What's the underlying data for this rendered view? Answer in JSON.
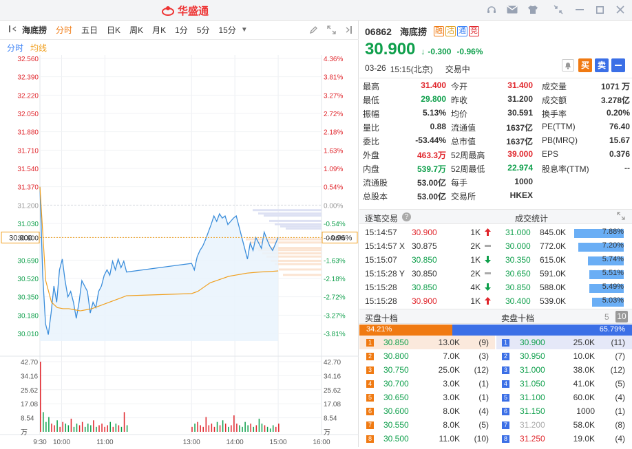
{
  "app": {
    "name": "华盛通",
    "colors": {
      "up": "#e0252b",
      "down": "#0e9f4b",
      "accent": "#f07a12",
      "blue": "#3b82f6"
    }
  },
  "window": {
    "icons": [
      "headset-icon",
      "mail-icon",
      "shirt-icon",
      "shrink-icon",
      "minimize-icon",
      "close-icon"
    ]
  },
  "toolbar": {
    "stock_name": "海底捞",
    "periods": [
      "分时",
      "五日",
      "日K",
      "周K",
      "月K",
      "1分",
      "5分",
      "15分"
    ],
    "active": "分时"
  },
  "subtabs": [
    "分时",
    "均线"
  ],
  "chart_data": {
    "type": "line",
    "price_axis": [
      "32.560",
      "32.390",
      "32.220",
      "32.050",
      "31.880",
      "31.710",
      "31.540",
      "31.370",
      "31.200",
      "31.030",
      "30.900",
      "30.690",
      "30.520",
      "30.350",
      "30.180",
      "30.010"
    ],
    "pct_axis": [
      "4.36%",
      "3.81%",
      "3.27%",
      "2.72%",
      "2.18%",
      "1.63%",
      "1.09%",
      "0.54%",
      "0.00%",
      "-0.54%",
      "-0.96%",
      "-1.63%",
      "-2.18%",
      "-2.72%",
      "-3.27%",
      "-3.81%"
    ],
    "prev_close": 31.2,
    "current": 30.9,
    "current_label": "30.900",
    "current_pct": "-0.96%",
    "ylim": [
      29.94,
      32.56
    ],
    "vol_axis": [
      "42.70",
      "34.16",
      "25.62",
      "17.08",
      "8.54",
      "万"
    ],
    "time_axis": [
      "9:30",
      "10:00",
      "11:00",
      "13:00",
      "14:00",
      "15:00",
      "16:00"
    ],
    "price": [
      31.37,
      30.55,
      30.1,
      30.0,
      30.2,
      30.45,
      30.3,
      30.6,
      30.7,
      30.5,
      30.35,
      30.4,
      30.3,
      30.15,
      30.3,
      30.5,
      30.45,
      30.4,
      30.2,
      30.3,
      30.25,
      30.4,
      30.45,
      30.55,
      30.6,
      30.55,
      30.68,
      30.6,
      30.7,
      30.62,
      30.68,
      30.58,
      30.66,
      30.6,
      30.72,
      30.78,
      30.82,
      30.88,
      30.95,
      31.02,
      31.1,
      31.05,
      31.12,
      31.08,
      31.1,
      31.02,
      31.05,
      31.08,
      31.1,
      31.0,
      30.9,
      30.8,
      30.7,
      30.85,
      30.78,
      30.9,
      30.85,
      30.8,
      30.95,
      30.88,
      30.82,
      30.78,
      30.84,
      30.9
    ],
    "avg": [
      31.37,
      30.5,
      30.3,
      30.25,
      30.24,
      30.24,
      30.23,
      30.22,
      30.23,
      30.24,
      30.26,
      30.28,
      30.3,
      30.32,
      30.34,
      30.36,
      30.38,
      30.4,
      30.44,
      30.48,
      30.5,
      30.52,
      30.54,
      30.55,
      30.56,
      30.57,
      30.575,
      30.58,
      30.583,
      30.586,
      30.59
    ],
    "volume": [
      42.7,
      12,
      6,
      9,
      5,
      4,
      7,
      3,
      6,
      5,
      4,
      8,
      3,
      5,
      4,
      6,
      3,
      5,
      4,
      7,
      3,
      4,
      5,
      3,
      4,
      6,
      3,
      5,
      4,
      3,
      12,
      4,
      3,
      5,
      6,
      4,
      3,
      9,
      4,
      5,
      3,
      6,
      4,
      7,
      5,
      3,
      4,
      10,
      5,
      4,
      3,
      6,
      4,
      5,
      3,
      4,
      8,
      5,
      4,
      3,
      2,
      4,
      3,
      5
    ],
    "ask_bands": [
      31.15,
      31.12,
      31.1,
      31.05,
      31.02,
      31.0,
      30.98
    ],
    "bid_bands": [
      30.88,
      30.85,
      30.8,
      30.78,
      30.75,
      30.72,
      30.68,
      30.65,
      30.6,
      30.55
    ]
  },
  "quote": {
    "code": "06862",
    "name": "海底捞",
    "badges": [
      "融",
      "沽",
      "通",
      "竞"
    ],
    "price": "30.900",
    "arrow": "↓",
    "change": "-0.300",
    "pct": "-0.96%",
    "date": "03-26",
    "time": "15:15(北京)",
    "status": "交易中",
    "actions": {
      "buy": "买",
      "sell": "卖"
    }
  },
  "stats": [
    [
      [
        "最高",
        "31.400",
        "red"
      ],
      [
        "今开",
        "31.400",
        "red"
      ],
      [
        "成交量",
        "1071 万",
        ""
      ]
    ],
    [
      [
        "最低",
        "29.800",
        "green"
      ],
      [
        "昨收",
        "31.200",
        ""
      ],
      [
        "成交额",
        "3.278亿",
        ""
      ]
    ],
    [
      [
        "振幅",
        "5.13%",
        ""
      ],
      [
        "均价",
        "30.591",
        ""
      ],
      [
        "换手率",
        "0.20%",
        ""
      ]
    ],
    [
      [
        "量比",
        "0.88",
        ""
      ],
      [
        "流通值",
        "1637亿",
        ""
      ],
      [
        "PE(TTM)",
        "76.40",
        ""
      ]
    ],
    [
      [
        "委比",
        "-53.44%",
        ""
      ],
      [
        "总市值",
        "1637亿",
        ""
      ],
      [
        "PB(MRQ)",
        "15.67",
        ""
      ]
    ],
    [
      [
        "外盘",
        "463.3万",
        "red"
      ],
      [
        "52周最高",
        "39.000",
        "red"
      ],
      [
        "EPS",
        "0.376",
        ""
      ]
    ],
    [
      [
        "内盘",
        "539.7万",
        "green"
      ],
      [
        "52周最低",
        "22.974",
        "green"
      ],
      [
        "股息率(TTM)",
        "--",
        ""
      ]
    ],
    [
      [
        "流通股",
        "53.00亿",
        ""
      ],
      [
        "每手",
        "1000",
        ""
      ],
      [
        "",
        "",
        " "
      ]
    ],
    [
      [
        "总股本",
        "53.00亿",
        ""
      ],
      [
        "交易所",
        "HKEX",
        ""
      ],
      [
        "",
        "",
        " "
      ]
    ]
  ],
  "trades": {
    "title": "逐笔交易",
    "rows": [
      {
        "time": "15:14:57",
        "price": "30.900",
        "qty": "1K",
        "dir": "up"
      },
      {
        "time": "15:14:57 X",
        "price": "30.875",
        "qty": "2K",
        "dir": "flat"
      },
      {
        "time": "15:15:07",
        "price": "30.850",
        "qty": "1K",
        "dir": "down"
      },
      {
        "time": "15:15:28 Y",
        "price": "30.850",
        "qty": "2K",
        "dir": "flat"
      },
      {
        "time": "15:15:28",
        "price": "30.850",
        "qty": "4K",
        "dir": "down"
      },
      {
        "time": "15:15:28",
        "price": "30.900",
        "qty": "1K",
        "dir": "up"
      }
    ]
  },
  "volstats": {
    "title": "成交统计",
    "rows": [
      {
        "price": "31.000",
        "vol": "845.0K",
        "pct": "7.88%",
        "frac": 0.0788
      },
      {
        "price": "30.000",
        "vol": "772.0K",
        "pct": "7.20%",
        "frac": 0.072
      },
      {
        "price": "30.350",
        "vol": "615.0K",
        "pct": "5.74%",
        "frac": 0.0574
      },
      {
        "price": "30.650",
        "vol": "591.0K",
        "pct": "5.51%",
        "frac": 0.0551
      },
      {
        "price": "30.850",
        "vol": "588.0K",
        "pct": "5.49%",
        "frac": 0.0549
      },
      {
        "price": "30.400",
        "vol": "539.0K",
        "pct": "5.03%",
        "frac": 0.0503
      }
    ]
  },
  "book": {
    "bid_title": "买盘十档",
    "ask_title": "卖盘十档",
    "levels": [
      "5",
      "10"
    ],
    "bid_pct": "34.21%",
    "ask_pct": "65.79%",
    "bid_frac": 0.3421,
    "bids": [
      {
        "lv": "1",
        "price": "30.850",
        "qty": "13.0K",
        "n": "(9)"
      },
      {
        "lv": "2",
        "price": "30.800",
        "qty": "7.0K",
        "n": "(3)"
      },
      {
        "lv": "3",
        "price": "30.750",
        "qty": "25.0K",
        "n": "(12)"
      },
      {
        "lv": "4",
        "price": "30.700",
        "qty": "3.0K",
        "n": "(1)"
      },
      {
        "lv": "5",
        "price": "30.650",
        "qty": "3.0K",
        "n": "(1)"
      },
      {
        "lv": "6",
        "price": "30.600",
        "qty": "8.0K",
        "n": "(4)"
      },
      {
        "lv": "7",
        "price": "30.550",
        "qty": "8.0K",
        "n": "(5)"
      },
      {
        "lv": "8",
        "price": "30.500",
        "qty": "11.0K",
        "n": "(10)"
      }
    ],
    "asks": [
      {
        "lv": "1",
        "price": "30.900",
        "qty": "25.0K",
        "n": "(11)"
      },
      {
        "lv": "2",
        "price": "30.950",
        "qty": "10.0K",
        "n": "(7)"
      },
      {
        "lv": "3",
        "price": "31.000",
        "qty": "38.0K",
        "n": "(12)"
      },
      {
        "lv": "4",
        "price": "31.050",
        "qty": "41.0K",
        "n": "(5)"
      },
      {
        "lv": "5",
        "price": "31.100",
        "qty": "60.0K",
        "n": "(4)"
      },
      {
        "lv": "6",
        "price": "31.150",
        "qty": "1000",
        "n": "(1)"
      },
      {
        "lv": "7",
        "price": "31.200",
        "qty": "58.0K",
        "n": "(8)"
      },
      {
        "lv": "8",
        "price": "31.250",
        "qty": "19.0K",
        "n": "(4)"
      }
    ]
  }
}
